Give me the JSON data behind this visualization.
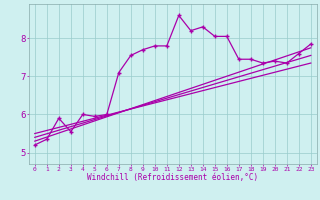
{
  "xlabel": "Windchill (Refroidissement éolien,°C)",
  "background_color": "#cff0f0",
  "line_color": "#aa00aa",
  "x_ticks": [
    0,
    1,
    2,
    3,
    4,
    5,
    6,
    7,
    8,
    9,
    10,
    11,
    12,
    13,
    14,
    15,
    16,
    17,
    18,
    19,
    20,
    21,
    22,
    23
  ],
  "y_ticks": [
    5,
    6,
    7,
    8
  ],
  "ylim": [
    4.7,
    8.9
  ],
  "xlim": [
    -0.5,
    23.5
  ],
  "series1_x": [
    0,
    1,
    2,
    3,
    4,
    5,
    6,
    7,
    8,
    9,
    10,
    11,
    12,
    13,
    14,
    15,
    16,
    17,
    18,
    19,
    20,
    21,
    22,
    23
  ],
  "series1_y": [
    5.2,
    5.35,
    5.9,
    5.55,
    6.0,
    5.95,
    6.0,
    7.1,
    7.55,
    7.7,
    7.8,
    7.8,
    8.6,
    8.2,
    8.3,
    8.05,
    8.05,
    7.45,
    7.45,
    7.35,
    7.4,
    7.35,
    7.6,
    7.85
  ],
  "series2_x": [
    0,
    23
  ],
  "series2_y": [
    5.3,
    7.75
  ],
  "series3_x": [
    0,
    23
  ],
  "series3_y": [
    5.4,
    7.55
  ],
  "series4_x": [
    0,
    23
  ],
  "series4_y": [
    5.5,
    7.35
  ],
  "grid_color": "#99cccc",
  "xlabel_fontsize": 5.5,
  "tick_fontsize_x": 4.5,
  "tick_fontsize_y": 6.5
}
